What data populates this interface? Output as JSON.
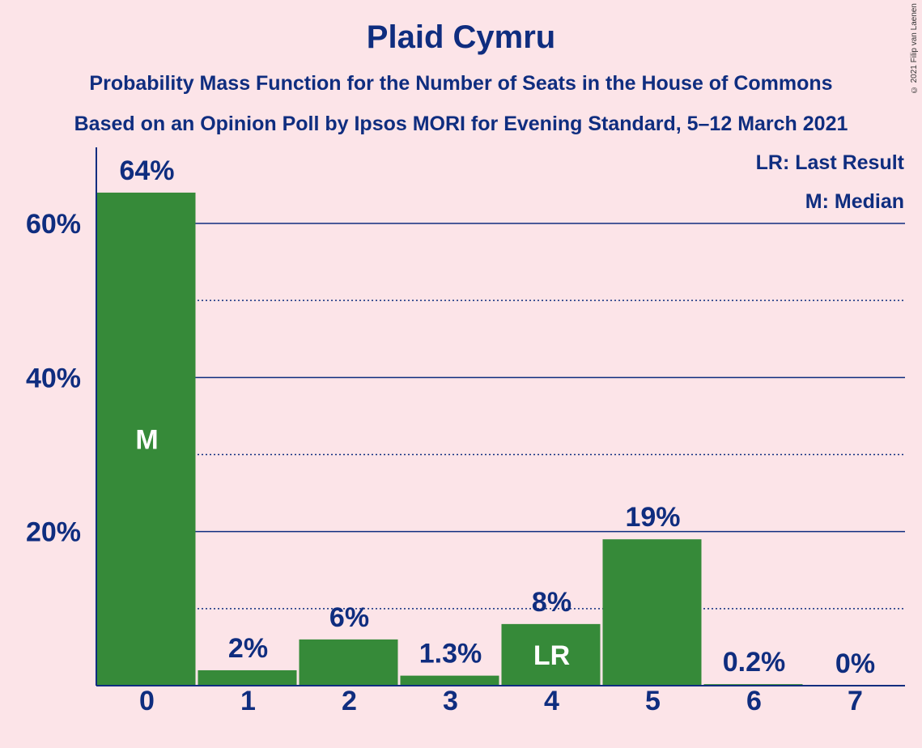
{
  "title": "Plaid Cymru",
  "subtitle": "Probability Mass Function for the Number of Seats in the House of Commons",
  "subtitle2": "Based on an Opinion Poll by Ipsos MORI for Evening Standard, 5–12 March 2021",
  "copyright": "© 2021 Filip van Laenen",
  "legend": {
    "last_result": "LR: Last Result",
    "median": "M: Median"
  },
  "colors": {
    "bar": "#368A39",
    "axis": "#0F2D7F",
    "background": "#FCE4E8"
  },
  "chart_data": {
    "type": "bar",
    "categories": [
      "0",
      "1",
      "2",
      "3",
      "4",
      "5",
      "6",
      "7"
    ],
    "values": [
      64,
      2,
      6,
      1.3,
      8,
      19,
      0.2,
      0
    ],
    "value_labels": [
      "64%",
      "2%",
      "6%",
      "1.3%",
      "8%",
      "19%",
      "0.2%",
      "0%"
    ],
    "markers": {
      "0": "M",
      "4": "LR"
    },
    "ylim": [
      0,
      70
    ],
    "yticks": [
      20,
      40,
      60
    ],
    "ytick_labels": [
      "20%",
      "40%",
      "60%"
    ],
    "minor_gridlines": [
      10,
      30,
      50
    ],
    "grid": true,
    "legend_position": "top-right"
  }
}
